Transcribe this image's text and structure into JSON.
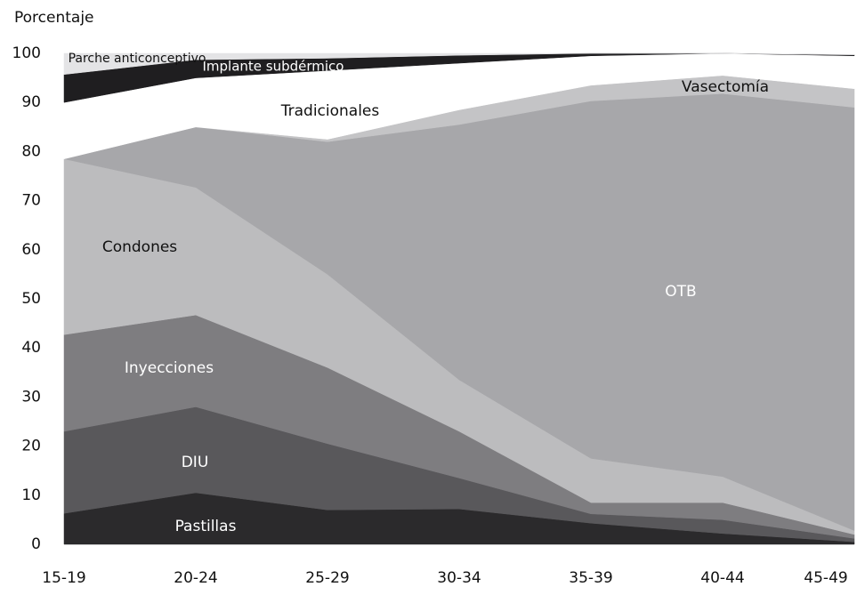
{
  "chart_data": {
    "type": "stacked_area",
    "y_label": "Porcentaje",
    "categories": [
      "15-19",
      "20-24",
      "25-29",
      "30-34",
      "35-39",
      "40-44",
      "45-49"
    ],
    "ylim": [
      0,
      100
    ],
    "yticks": [
      0,
      10,
      20,
      30,
      40,
      50,
      60,
      70,
      80,
      90,
      100
    ],
    "series": [
      {
        "name": "Pastillas",
        "color": "#2b2a2c",
        "values": [
          6.3,
          10.5,
          7,
          7.2,
          4.3,
          2.2,
          0.5
        ]
      },
      {
        "name": "DIU",
        "color": "#59585b",
        "values": [
          16.7,
          17.5,
          13.5,
          6.3,
          1.9,
          2.8,
          0.7
        ]
      },
      {
        "name": "Inyecciones",
        "color": "#7e7d80",
        "values": [
          19.7,
          18.7,
          15.5,
          9.5,
          2.3,
          3.5,
          0.8
        ]
      },
      {
        "name": "Condones",
        "color": "#bcbcbe",
        "values": [
          35.8,
          26,
          19,
          10.5,
          9,
          5.3,
          0.8
        ]
      },
      {
        "name": "OTB",
        "color": "#a7a7aa",
        "values": [
          0,
          12.3,
          27,
          52,
          72.8,
          78,
          86.2
        ]
      },
      {
        "name": "Vasectomía",
        "color": "#c4c4c6",
        "values": [
          0,
          0,
          0.5,
          3,
          3.2,
          3.7,
          3.8
        ]
      },
      {
        "name": "Tradicionales",
        "color": "#ffffff",
        "values": [
          11.5,
          10,
          14,
          9.5,
          6,
          4.5,
          6.7
        ]
      },
      {
        "name": "Implante subdérmico",
        "color": "#1f1e20",
        "values": [
          5.7,
          3.7,
          2.5,
          1.6,
          0.5,
          0,
          0.2
        ]
      },
      {
        "name": "Parche anticonceptivo",
        "color": "#e4e4e6",
        "values": [
          4.3,
          1.3,
          1,
          0.4,
          0,
          0,
          0
        ]
      }
    ]
  }
}
